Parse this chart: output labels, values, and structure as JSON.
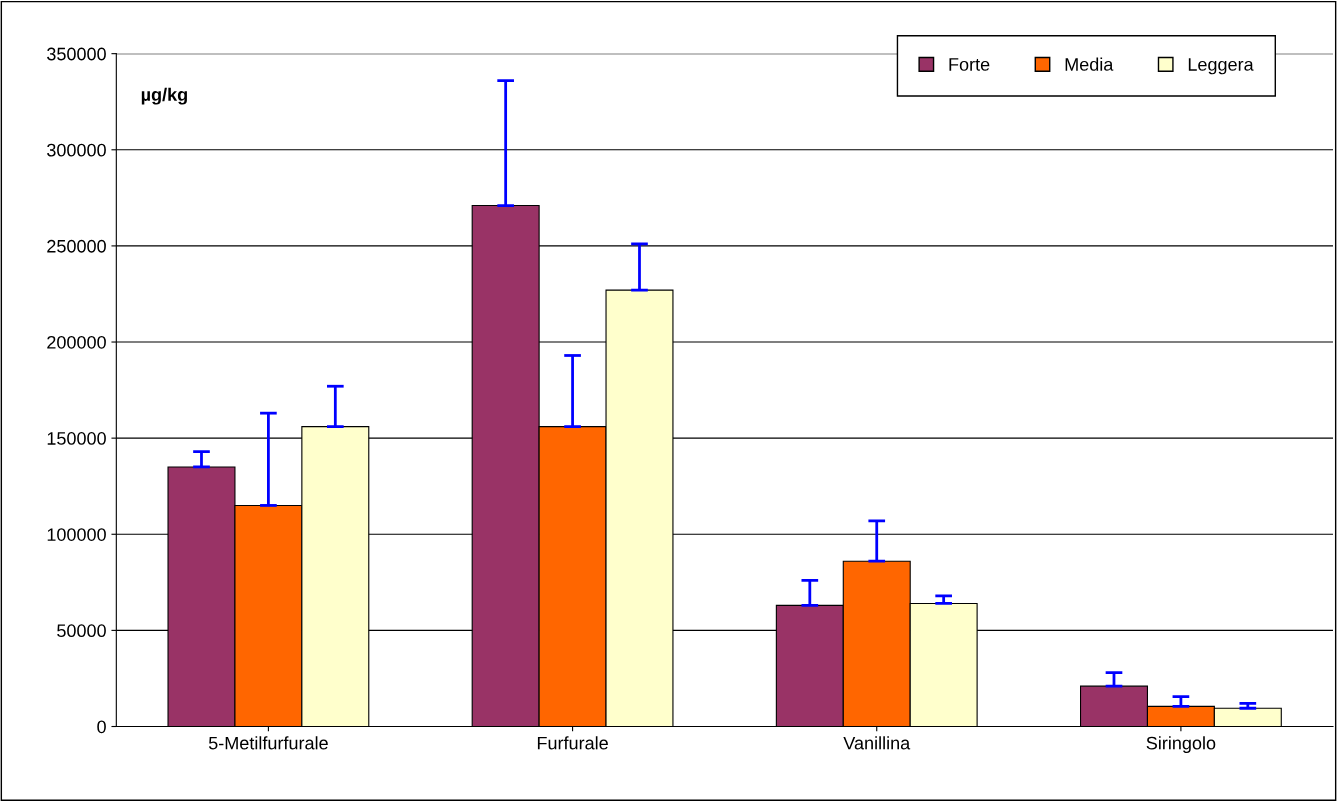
{
  "chart_data": {
    "type": "bar",
    "categories": [
      "5-Metilfurfurale",
      "Furfurale",
      "Vanillina",
      "Siringolo"
    ],
    "series": [
      {
        "name": "Forte",
        "color": "#993366",
        "values": [
          135000,
          271000,
          63000,
          21000
        ],
        "errors": [
          [
            135000,
            143000
          ],
          [
            271000,
            336000
          ],
          [
            63000,
            76000
          ],
          [
            21000,
            28000
          ]
        ]
      },
      {
        "name": "Media",
        "color": "#ff6600",
        "values": [
          115000,
          156000,
          86000,
          10500
        ],
        "errors": [
          [
            115000,
            163000
          ],
          [
            156000,
            193000
          ],
          [
            86000,
            107000
          ],
          [
            10500,
            15500
          ]
        ]
      },
      {
        "name": "Leggera",
        "color": "#ffffcc",
        "values": [
          156000,
          227000,
          64000,
          9500
        ],
        "errors": [
          [
            156000,
            177000
          ],
          [
            227000,
            251000
          ],
          [
            64000,
            68000
          ],
          [
            9500,
            12000
          ]
        ]
      }
    ],
    "ylim": [
      0,
      350000
    ],
    "yticks": [
      0,
      50000,
      100000,
      150000,
      200000,
      250000,
      300000,
      350000
    ],
    "annotations": [
      "µg/kg"
    ],
    "grid": "y",
    "legend": "top right"
  }
}
